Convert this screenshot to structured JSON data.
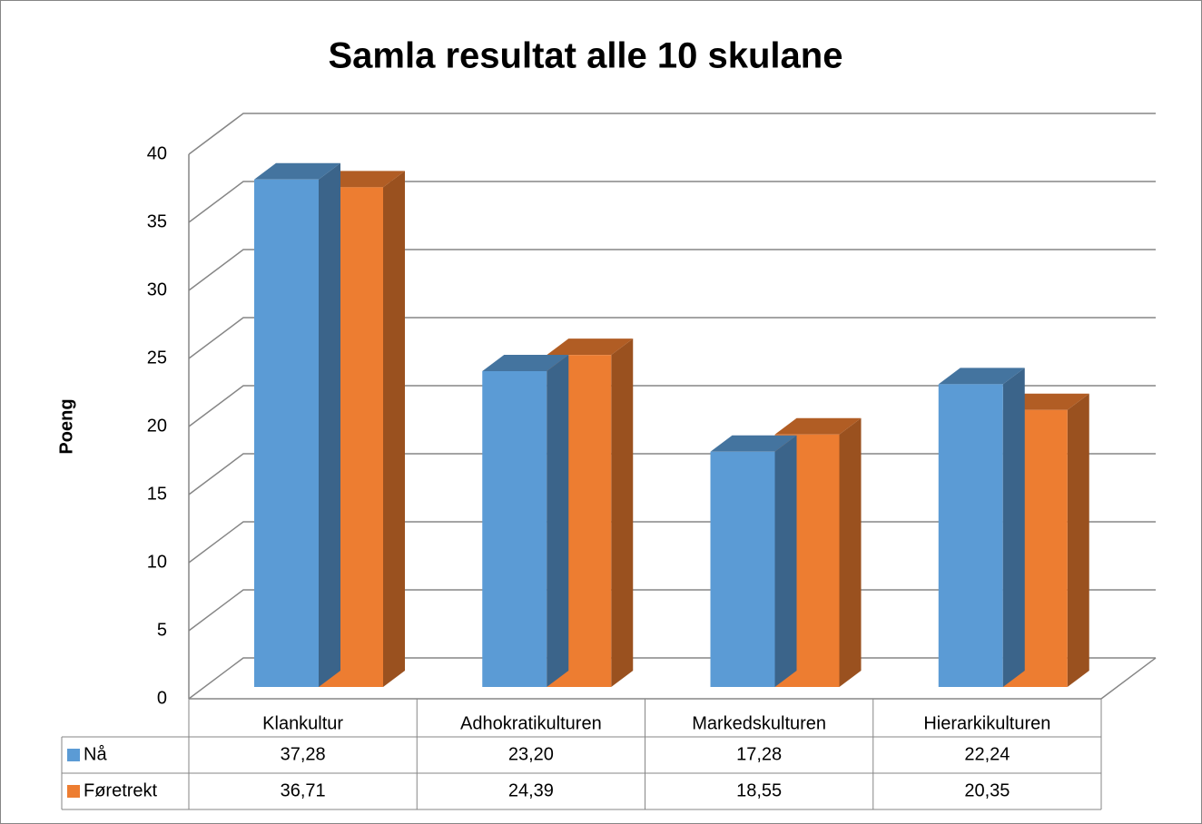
{
  "chart_data": {
    "type": "bar3d",
    "title": "Samla resultat alle 10 skulane",
    "y_label": "Poeng",
    "categories": [
      "Klankultur",
      "Adhokratikulturen",
      "Markedskulturen",
      "Hierarkikulturen"
    ],
    "series": [
      {
        "name": "Nå",
        "color": "#5b9bd5",
        "values": [
          37.28,
          23.2,
          17.28,
          22.24
        ],
        "value_labels": [
          "37,28",
          "23,20",
          "17,28",
          "22,24"
        ]
      },
      {
        "name": "Føretrekt",
        "color": "#ed7d31",
        "values": [
          36.71,
          24.39,
          18.55,
          20.35
        ],
        "value_labels": [
          "36,71",
          "24,39",
          "18,55",
          "20,35"
        ]
      }
    ],
    "ylim": [
      0,
      40
    ],
    "yticks": [
      0,
      5,
      10,
      15,
      20,
      25,
      30,
      35,
      40
    ],
    "grid": true,
    "data_table": true
  }
}
